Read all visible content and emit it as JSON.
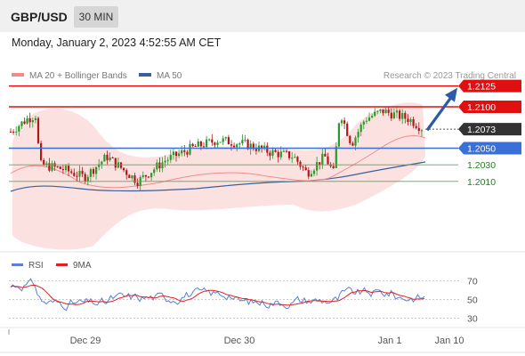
{
  "header": {
    "pair": "GBP/USD",
    "timeframe": "30 MIN"
  },
  "datetime": "Monday, January 2, 2023 4:52:55 AM CET",
  "legend": [
    {
      "label": "MA 20 + Bollinger Bands",
      "color": "#f08c8c"
    },
    {
      "label": "MA 50",
      "color": "#3a5f9a"
    }
  ],
  "credit": "Research © 2023 Trading Central",
  "rsi_legend": [
    {
      "label": "RSI",
      "color": "#5b7fd8"
    },
    {
      "label": "9MA",
      "color": "#e02020"
    }
  ],
  "colors": {
    "resistance": "#e01010",
    "pivot": "#3a6fd8",
    "support": "#55aa55",
    "current": "#333333",
    "bull": "#2a9a2a",
    "bear": "#b01818"
  },
  "chart_data": [
    {
      "type": "candlestick",
      "title": "GBP/USD 30 MIN",
      "ylim": [
        1.1925,
        1.213
      ],
      "x_tick_labels": [
        "Dec 29",
        "Dec 30",
        "Jan 1",
        "Jan 10"
      ],
      "levels": [
        {
          "value": 1.2125,
          "label": "1.2125",
          "kind": "resistance"
        },
        {
          "value": 1.21,
          "label": "1.2100",
          "kind": "resistance"
        },
        {
          "value": 1.2073,
          "label": "1.2073",
          "kind": "current"
        },
        {
          "value": 1.205,
          "label": "1.2050",
          "kind": "pivot"
        },
        {
          "value": 1.203,
          "label": "1.2030",
          "kind": "support"
        },
        {
          "value": 1.201,
          "label": "1.2010",
          "kind": "support"
        }
      ],
      "forecast_arrow": {
        "from": 1.2075,
        "to": 1.2125
      }
    },
    {
      "type": "line",
      "title": "RSI",
      "ylim": [
        20,
        80
      ],
      "y_ticks": [
        70,
        50,
        30
      ],
      "series": [
        {
          "name": "RSI"
        },
        {
          "name": "9MA"
        }
      ]
    }
  ]
}
